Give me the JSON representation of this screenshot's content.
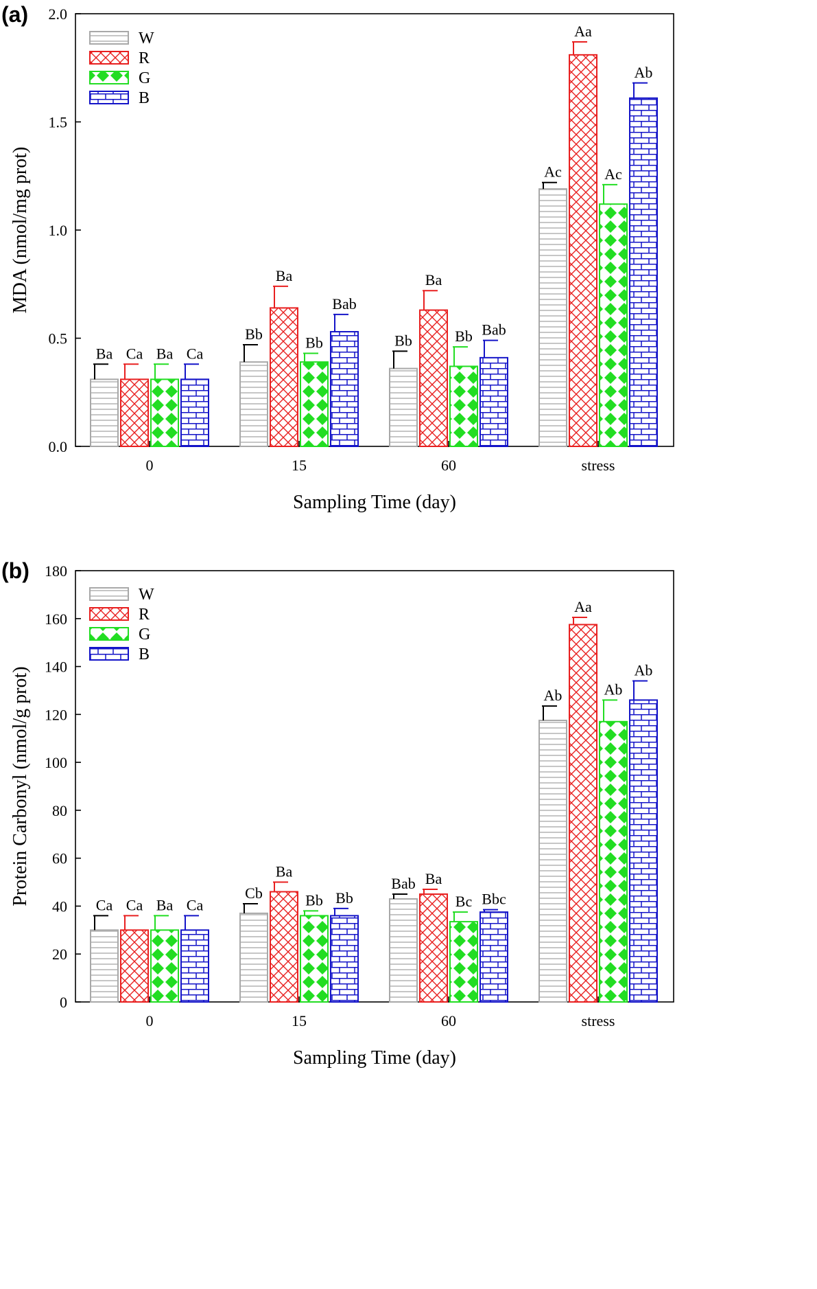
{
  "legend_placement": "top-left",
  "colors": {
    "W": "#a8a8a8",
    "R": "#e82020",
    "G": "#22dd22",
    "B": "#1414c8"
  },
  "chart_data": [
    {
      "panel_label": "(a)",
      "type": "bar",
      "categories": [
        "0",
        "15",
        "60",
        "stress"
      ],
      "xlabel": "Sampling Time (day)",
      "ylabel": "MDA (nmol/mg prot)",
      "ylim": [
        0,
        2.0
      ],
      "yticks": [
        "0.0",
        "0.5",
        "1.0",
        "1.5",
        "2.0"
      ],
      "series": [
        {
          "name": "W",
          "values": [
            0.31,
            0.39,
            0.36,
            1.19
          ],
          "errors": [
            0.07,
            0.08,
            0.08,
            0.03
          ],
          "labels": [
            "Ba",
            "Bb",
            "Bb",
            "Ac"
          ]
        },
        {
          "name": "R",
          "values": [
            0.31,
            0.64,
            0.63,
            1.81
          ],
          "errors": [
            0.07,
            0.1,
            0.09,
            0.06
          ],
          "labels": [
            "Ca",
            "Ba",
            "Ba",
            "Aa"
          ]
        },
        {
          "name": "G",
          "values": [
            0.31,
            0.39,
            0.37,
            1.12
          ],
          "errors": [
            0.07,
            0.04,
            0.09,
            0.09
          ],
          "labels": [
            "Ba",
            "Bb",
            "Bb",
            "Ac"
          ]
        },
        {
          "name": "B",
          "values": [
            0.31,
            0.53,
            0.41,
            1.61
          ],
          "errors": [
            0.07,
            0.08,
            0.08,
            0.07
          ],
          "labels": [
            "Ca",
            "Bab",
            "Bab",
            "Ab"
          ]
        }
      ]
    },
    {
      "panel_label": "(b)",
      "type": "bar",
      "categories": [
        "0",
        "15",
        "60",
        "stress"
      ],
      "xlabel": "Sampling Time (day)",
      "ylabel": "Protein Carbonyl (nmol/g prot)",
      "ylim": [
        0,
        180
      ],
      "yticks": [
        "0",
        "20",
        "40",
        "60",
        "80",
        "100",
        "120",
        "140",
        "160",
        "180"
      ],
      "series": [
        {
          "name": "W",
          "values": [
            30,
            37,
            43,
            117.5
          ],
          "errors": [
            6,
            4,
            2,
            6
          ],
          "labels": [
            "Ca",
            "Cb",
            "Bab",
            "Ab"
          ]
        },
        {
          "name": "R",
          "values": [
            30,
            46,
            45,
            157.5
          ],
          "errors": [
            6,
            4,
            2,
            3
          ],
          "labels": [
            "Ca",
            "Ba",
            "Ba",
            "Aa"
          ]
        },
        {
          "name": "G",
          "values": [
            30,
            36,
            33.5,
            117
          ],
          "errors": [
            6,
            2,
            4,
            9
          ],
          "labels": [
            "Ba",
            "Bb",
            "Bc",
            "Ab"
          ]
        },
        {
          "name": "B",
          "values": [
            30,
            36,
            37.5,
            126
          ],
          "errors": [
            6,
            3,
            1,
            8
          ],
          "labels": [
            "Ca",
            "Bb",
            "Bbc",
            "Ab"
          ]
        }
      ]
    }
  ]
}
